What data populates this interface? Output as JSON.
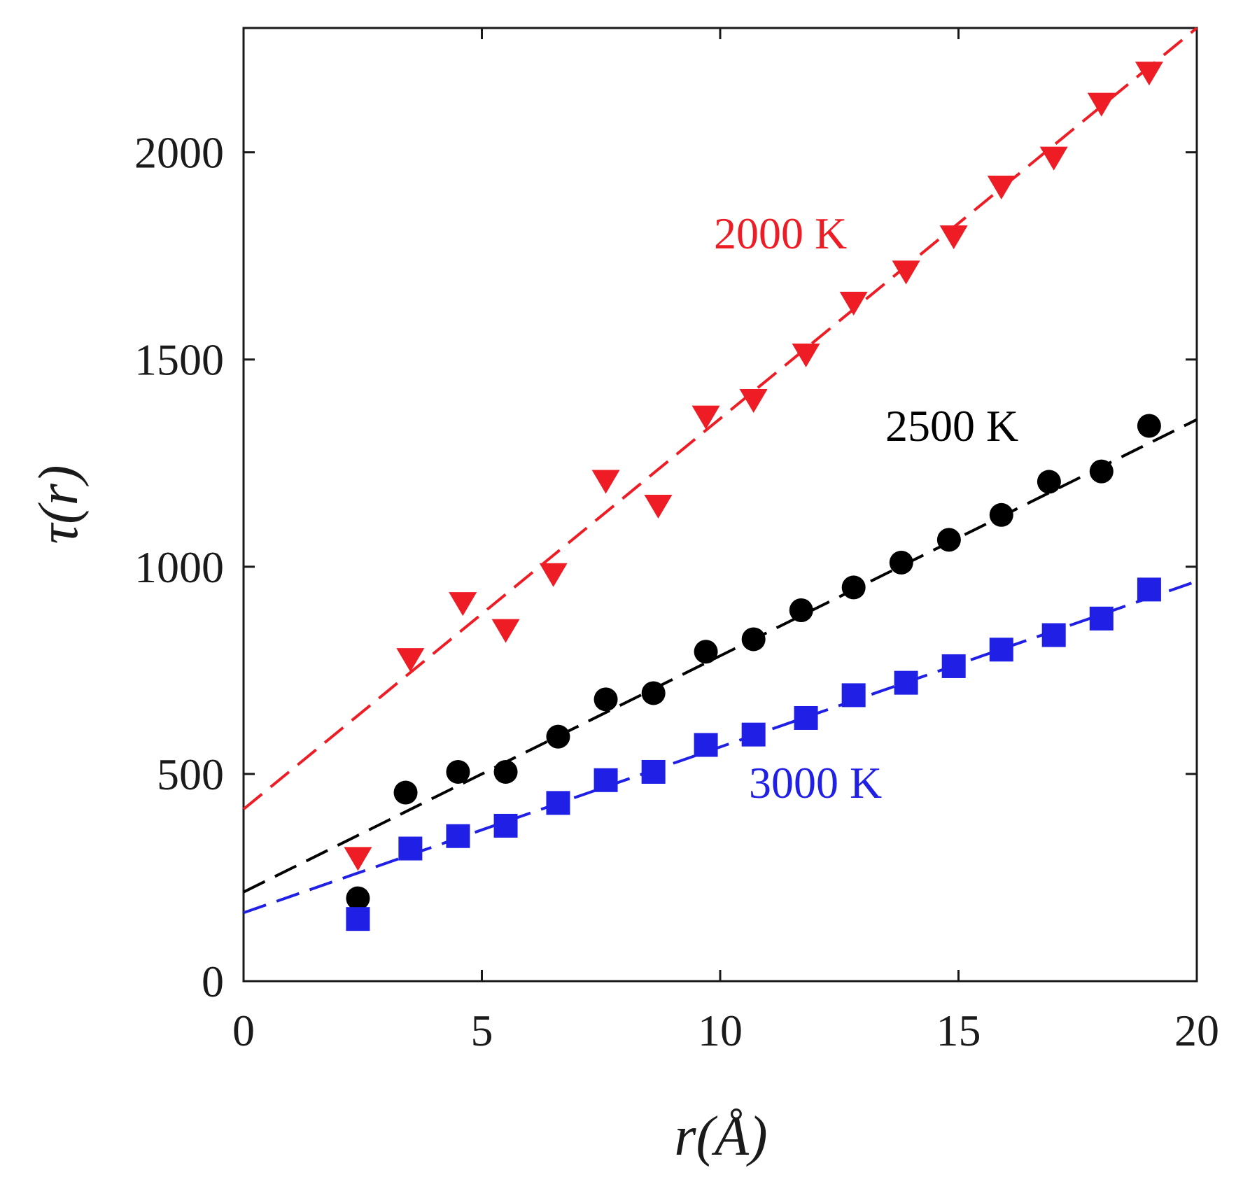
{
  "chart_data": {
    "type": "scatter",
    "title": "",
    "xlabel": "r(Å)",
    "ylabel": "τ(r)",
    "xlim": [
      0,
      20
    ],
    "ylim": [
      0,
      2300
    ],
    "xticks": [
      0,
      5,
      10,
      15,
      20
    ],
    "yticks": [
      0,
      500,
      1000,
      1500,
      2000
    ],
    "xtick_labels": [
      "0",
      "5",
      "10",
      "15",
      "20"
    ],
    "ytick_labels": [
      "0",
      "500",
      "1000",
      "1500",
      "2000"
    ],
    "grid": false,
    "series": [
      {
        "name": "2000 K",
        "label": "2000 K",
        "color": "#ee1c24",
        "marker": "triangle-down",
        "x": [
          2.4,
          3.5,
          4.6,
          5.5,
          6.5,
          7.6,
          8.7,
          9.7,
          10.7,
          11.8,
          12.8,
          13.9,
          14.9,
          15.9,
          17.0,
          18.0,
          19.0
        ],
        "y": [
          300,
          780,
          915,
          850,
          985,
          1210,
          1150,
          1365,
          1405,
          1515,
          1640,
          1715,
          1800,
          1920,
          1990,
          2120,
          2195
        ],
        "fit": {
          "x": [
            0,
            20
          ],
          "y": [
            415,
            2300
          ]
        }
      },
      {
        "name": "2500 K",
        "label": "2500 K",
        "color": "#000000",
        "marker": "circle",
        "x": [
          2.4,
          3.4,
          4.5,
          5.5,
          6.6,
          7.6,
          8.6,
          9.7,
          10.7,
          11.7,
          12.8,
          13.8,
          14.8,
          15.9,
          16.9,
          18.0,
          19.0
        ],
        "y": [
          200,
          455,
          505,
          505,
          590,
          680,
          695,
          795,
          825,
          895,
          950,
          1010,
          1065,
          1125,
          1205,
          1230,
          1340
        ],
        "fit": {
          "x": [
            0,
            20
          ],
          "y": [
            215,
            1355
          ]
        }
      },
      {
        "name": "3000 K",
        "label": "3000 K",
        "color": "#1f1fe6",
        "marker": "square",
        "x": [
          2.4,
          3.5,
          4.5,
          5.5,
          6.6,
          7.6,
          8.6,
          9.7,
          10.7,
          11.8,
          12.8,
          13.9,
          14.9,
          15.9,
          17.0,
          18.0,
          19.0
        ],
        "y": [
          150,
          320,
          350,
          375,
          430,
          485,
          505,
          570,
          595,
          635,
          690,
          720,
          760,
          800,
          835,
          875,
          945
        ],
        "fit": {
          "x": [
            0,
            20
          ],
          "y": [
            165,
            965
          ]
        }
      }
    ]
  }
}
